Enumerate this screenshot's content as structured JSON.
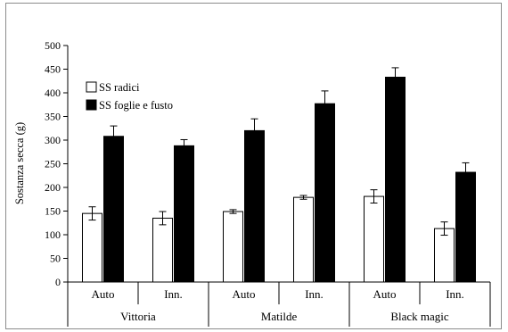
{
  "chart_data": {
    "type": "bar",
    "ylabel": "Sostanza secca (g)",
    "ylim": [
      0,
      500
    ],
    "yticks": [
      0,
      50,
      100,
      150,
      200,
      250,
      300,
      350,
      400,
      450,
      500
    ],
    "grid": false,
    "legend_position": "top-left",
    "categories": [
      "Auto",
      "Inn.",
      "Auto",
      "Inn.",
      "Auto",
      "Inn."
    ],
    "groups": [
      {
        "label": "Vittoria",
        "categories": [
          "Auto",
          "Inn."
        ]
      },
      {
        "label": "Matilde",
        "categories": [
          "Auto",
          "Inn."
        ]
      },
      {
        "label": "Black magic",
        "categories": [
          "Auto",
          "Inn."
        ]
      }
    ],
    "series": [
      {
        "name": "SS radici",
        "color": "#ffffff",
        "values": [
          145,
          135,
          149,
          179,
          181,
          113
        ],
        "errors": [
          14,
          14,
          4,
          4,
          14,
          14
        ]
      },
      {
        "name": "SS foglie e fusto",
        "color": "#000000",
        "values": [
          308,
          288,
          320,
          377,
          433,
          232
        ],
        "errors": [
          22,
          13,
          25,
          27,
          20,
          20
        ]
      }
    ]
  }
}
